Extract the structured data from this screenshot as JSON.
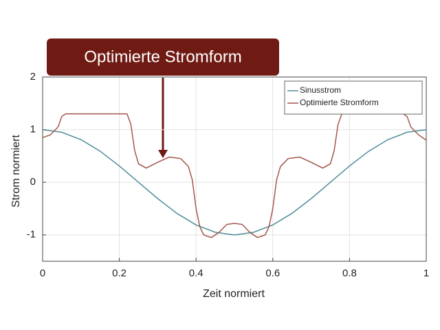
{
  "chart_data": {
    "type": "line",
    "annotation": "Optimierte Stromform",
    "xlabel": "Zeit normiert",
    "ylabel": "Strom normiert",
    "xlim": [
      0,
      1
    ],
    "xticks": [
      0,
      0.2,
      0.4,
      0.6,
      0.8,
      1
    ],
    "ylim": [
      -1.5,
      2
    ],
    "yticks": [
      -1,
      0,
      1,
      2
    ],
    "grid": true,
    "legend": "upper right",
    "series": [
      {
        "name": "Sinusstrom",
        "color": "#4f8c98",
        "x": [
          0,
          0.05,
          0.1,
          0.15,
          0.2,
          0.25,
          0.3,
          0.35,
          0.4,
          0.45,
          0.5,
          0.55,
          0.6,
          0.65,
          0.7,
          0.75,
          0.8,
          0.85,
          0.9,
          0.95,
          1
        ],
        "values": [
          1,
          0.95,
          0.81,
          0.59,
          0.31,
          0,
          -0.31,
          -0.59,
          -0.81,
          -0.95,
          -1,
          -0.95,
          -0.81,
          -0.59,
          -0.31,
          0,
          0.31,
          0.59,
          0.81,
          0.95,
          1
        ]
      },
      {
        "name": "Optimierte Stromform",
        "color": "#a3564c",
        "x": [
          0,
          0.02,
          0.04,
          0.05,
          0.06,
          0.1,
          0.15,
          0.2,
          0.22,
          0.23,
          0.24,
          0.25,
          0.27,
          0.3,
          0.33,
          0.36,
          0.38,
          0.39,
          0.4,
          0.41,
          0.42,
          0.44,
          0.46,
          0.48,
          0.5,
          0.52,
          0.54,
          0.56,
          0.58,
          0.59,
          0.6,
          0.61,
          0.62,
          0.64,
          0.67,
          0.7,
          0.73,
          0.75,
          0.76,
          0.77,
          0.78,
          0.85,
          0.94,
          0.95,
          0.96,
          0.98,
          1
        ],
        "values": [
          0.85,
          0.9,
          1.05,
          1.25,
          1.3,
          1.3,
          1.3,
          1.3,
          1.3,
          1.1,
          0.6,
          0.35,
          0.27,
          0.38,
          0.48,
          0.45,
          0.3,
          0.05,
          -0.5,
          -0.85,
          -1,
          -1.05,
          -0.95,
          -0.8,
          -0.78,
          -0.8,
          -0.95,
          -1.05,
          -1,
          -0.85,
          -0.5,
          0.05,
          0.3,
          0.45,
          0.48,
          0.38,
          0.27,
          0.35,
          0.6,
          1.1,
          1.3,
          1.3,
          1.3,
          1.25,
          1.05,
          0.9,
          0.8
        ]
      }
    ]
  }
}
